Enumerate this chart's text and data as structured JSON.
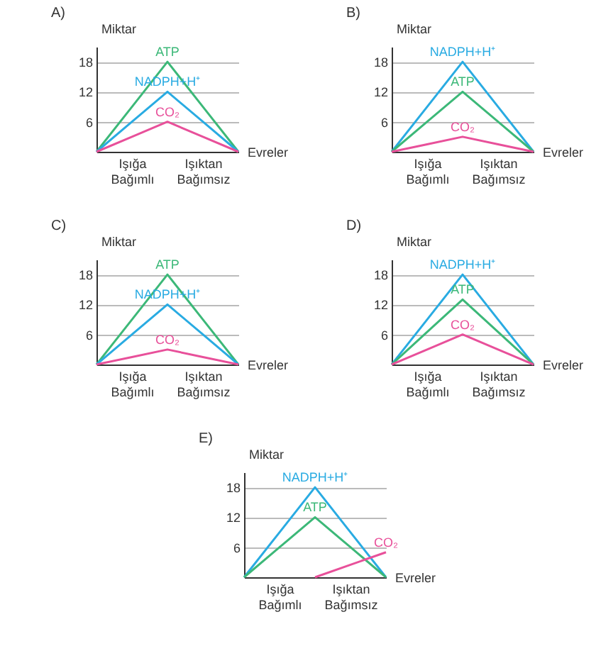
{
  "chart_data": [
    {
      "type": "line",
      "title": "A)",
      "xlabel": "Evreler",
      "ylabel": "Miktar",
      "categories": [
        null,
        "Işığa Bağımlı",
        null,
        "Işıktan Bağımsız",
        null
      ],
      "ylim": [
        0,
        21
      ],
      "yticks": [
        6,
        12,
        18
      ],
      "grid": "y",
      "series": [
        {
          "name": "ATP",
          "color": "#3cb878",
          "values": [
            0,
            9,
            18,
            9,
            0
          ]
        },
        {
          "name": "NADPH+H⁺",
          "color": "#29abe2",
          "values": [
            0,
            6,
            12,
            6,
            0
          ]
        },
        {
          "name": "CO₂",
          "color": "#e8509a",
          "values": [
            0,
            3,
            6,
            3,
            0
          ]
        }
      ]
    },
    {
      "type": "line",
      "title": "B)",
      "xlabel": "Evreler",
      "ylabel": "Miktar",
      "categories": [
        null,
        "Işığa Bağımlı",
        null,
        "Işıktan Bağımsız",
        null
      ],
      "ylim": [
        0,
        21
      ],
      "yticks": [
        6,
        12,
        18
      ],
      "grid": "y",
      "series": [
        {
          "name": "NADPH+H⁺",
          "color": "#29abe2",
          "values": [
            0,
            9,
            18,
            9,
            0
          ]
        },
        {
          "name": "ATP",
          "color": "#3cb878",
          "values": [
            0,
            6,
            12,
            6,
            0
          ]
        },
        {
          "name": "CO₂",
          "color": "#e8509a",
          "values": [
            0,
            1.5,
            3,
            1.5,
            0
          ]
        }
      ]
    },
    {
      "type": "line",
      "title": "C)",
      "xlabel": "Evreler",
      "ylabel": "Miktar",
      "categories": [
        null,
        "Işığa Bağımlı",
        null,
        "Işıktan Bağımsız",
        null
      ],
      "ylim": [
        0,
        21
      ],
      "yticks": [
        6,
        12,
        18
      ],
      "grid": "y",
      "series": [
        {
          "name": "ATP",
          "color": "#3cb878",
          "values": [
            0,
            9,
            18,
            9,
            0
          ]
        },
        {
          "name": "NADPH+H⁺",
          "color": "#29abe2",
          "values": [
            0,
            6,
            12,
            6,
            0
          ]
        },
        {
          "name": "CO₂",
          "color": "#e8509a",
          "values": [
            0,
            1.5,
            3,
            1.5,
            0
          ]
        }
      ]
    },
    {
      "type": "line",
      "title": "D)",
      "xlabel": "Evreler",
      "ylabel": "Miktar",
      "categories": [
        null,
        "Işığa Bağımlı",
        null,
        "Işıktan Bağımsız",
        null
      ],
      "ylim": [
        0,
        21
      ],
      "yticks": [
        6,
        12,
        18
      ],
      "grid": "y",
      "series": [
        {
          "name": "NADPH+H⁺",
          "color": "#29abe2",
          "values": [
            0,
            9,
            18,
            9,
            0
          ]
        },
        {
          "name": "ATP",
          "color": "#3cb878",
          "values": [
            0,
            6.5,
            13,
            6.5,
            0
          ]
        },
        {
          "name": "CO₂",
          "color": "#e8509a",
          "values": [
            0,
            3,
            6,
            3,
            0
          ]
        }
      ]
    },
    {
      "type": "line",
      "title": "E)",
      "xlabel": "Evreler",
      "ylabel": "Miktar",
      "categories": [
        null,
        "Işığa Bağımlı",
        null,
        "Işıktan Bağımsız",
        null
      ],
      "ylim": [
        0,
        21
      ],
      "yticks": [
        6,
        12,
        18
      ],
      "grid": "y",
      "series": [
        {
          "name": "NADPH+H⁺",
          "color": "#29abe2",
          "values": [
            0,
            9,
            18,
            9,
            0
          ]
        },
        {
          "name": "ATP",
          "color": "#3cb878",
          "values": [
            0,
            6,
            12,
            6,
            0
          ]
        },
        {
          "name": "CO₂",
          "color": "#e8509a",
          "values": [
            null,
            null,
            0,
            2.5,
            5
          ]
        }
      ]
    }
  ]
}
